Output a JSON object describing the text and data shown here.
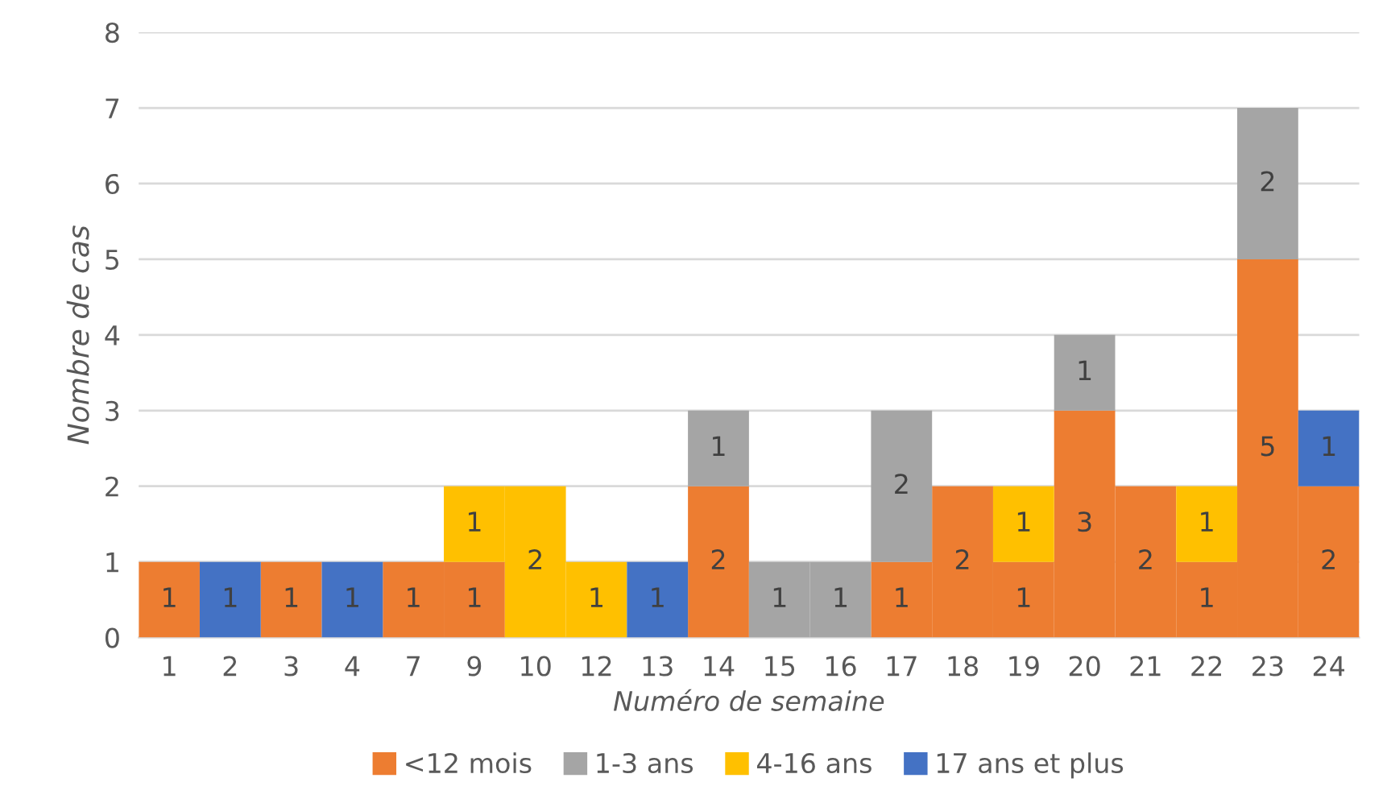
{
  "chart_data": {
    "type": "bar",
    "stacked": true,
    "xlabel": "Numéro de semaine",
    "ylabel": "Nombre de cas",
    "categories": [
      "1",
      "2",
      "3",
      "4",
      "7",
      "9",
      "10",
      "12",
      "13",
      "14",
      "15",
      "16",
      "17",
      "18",
      "19",
      "20",
      "21",
      "22",
      "23",
      "24"
    ],
    "series": [
      {
        "name": "<12 mois",
        "color": "#ed7d31",
        "values": [
          1,
          null,
          1,
          null,
          1,
          1,
          null,
          null,
          null,
          2,
          null,
          null,
          1,
          2,
          1,
          3,
          2,
          1,
          5,
          2
        ]
      },
      {
        "name": "1-3 ans",
        "color": "#a5a5a5",
        "values": [
          null,
          null,
          null,
          null,
          null,
          null,
          null,
          null,
          null,
          1,
          1,
          1,
          2,
          null,
          null,
          1,
          null,
          null,
          2,
          null
        ]
      },
      {
        "name": "4-16 ans",
        "color": "#ffc000",
        "values": [
          null,
          null,
          null,
          null,
          null,
          1,
          2,
          1,
          null,
          null,
          null,
          null,
          null,
          null,
          1,
          null,
          null,
          1,
          null,
          null
        ]
      },
      {
        "name": "17 ans et plus",
        "color": "#4472c4",
        "values": [
          null,
          1,
          null,
          1,
          null,
          null,
          null,
          null,
          1,
          null,
          null,
          null,
          null,
          null,
          null,
          null,
          null,
          null,
          null,
          1
        ]
      }
    ],
    "ylim": [
      0,
      8
    ],
    "yticks": [
      0,
      1,
      2,
      3,
      4,
      5,
      6,
      7,
      8
    ],
    "grid": "y",
    "legend": "bottom",
    "data_labels": true
  }
}
